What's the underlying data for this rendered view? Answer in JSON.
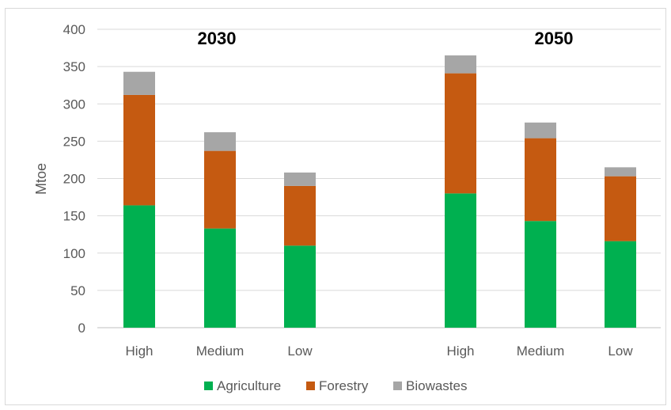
{
  "chart_data": {
    "type": "bar",
    "stacked": true,
    "ylabel": "Mtoe",
    "ylim": [
      0,
      400
    ],
    "yticks": [
      0,
      50,
      100,
      150,
      200,
      250,
      300,
      350,
      400
    ],
    "grid": true,
    "legend_position": "bottom",
    "groups": [
      {
        "title": "2030",
        "categories": [
          "High",
          "Medium",
          "Low"
        ],
        "series": [
          {
            "name": "Agriculture",
            "color": "#00b050",
            "values": [
              164,
              133,
              110
            ]
          },
          {
            "name": "Forestry",
            "color": "#c55a11",
            "values": [
              148,
              104,
              80
            ]
          },
          {
            "name": "Biowastes",
            "color": "#a6a6a6",
            "values": [
              31,
              25,
              18
            ]
          }
        ]
      },
      {
        "title": "2050",
        "categories": [
          "High",
          "Medium",
          "Low"
        ],
        "series": [
          {
            "name": "Agriculture",
            "color": "#00b050",
            "values": [
              180,
              143,
              116
            ]
          },
          {
            "name": "Forestry",
            "color": "#c55a11",
            "values": [
              161,
              111,
              87
            ]
          },
          {
            "name": "Biowastes",
            "color": "#a6a6a6",
            "values": [
              24,
              21,
              12
            ]
          }
        ]
      }
    ],
    "legend": [
      {
        "name": "Agriculture",
        "color": "#00b050"
      },
      {
        "name": "Forestry",
        "color": "#c55a11"
      },
      {
        "name": "Biowastes",
        "color": "#a6a6a6"
      }
    ]
  }
}
